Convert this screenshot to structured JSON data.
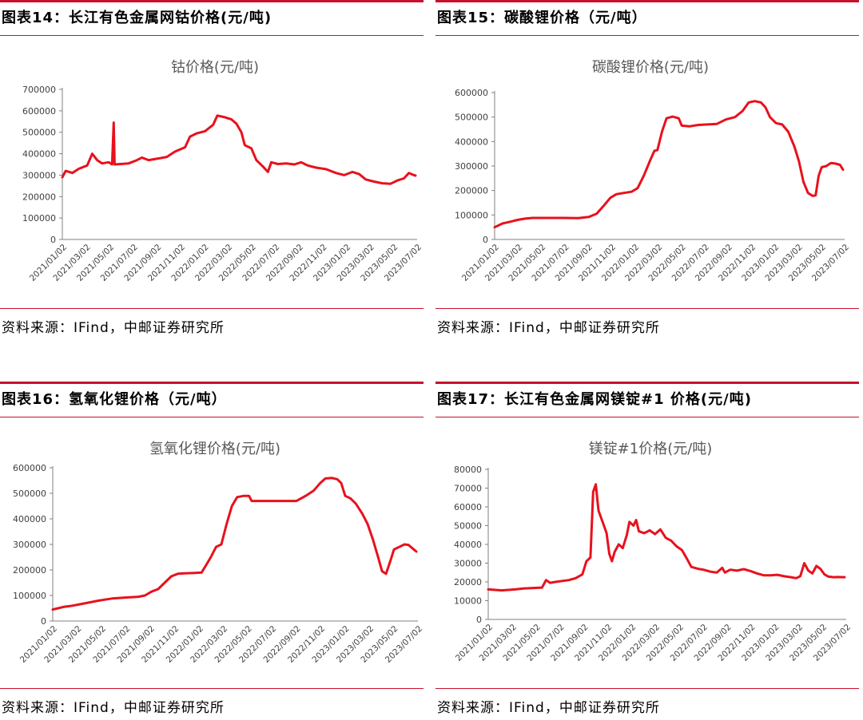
{
  "source_label": "资料来源：IFind，中邮证券研究所",
  "panels": [
    {
      "header": "图表14：长江有色金属网钴价格(元/吨)"
    },
    {
      "header": "图表15：碳酸锂价格（元/吨）"
    },
    {
      "header": "图表16：氢氧化锂价格（元/吨）"
    },
    {
      "header": "图表17：长江有色金属网镁锭#1 价格(元/吨)"
    }
  ],
  "chart_data": [
    {
      "type": "line",
      "title": "钴价格(元/吨)",
      "color": "#e8111c",
      "ylim": [
        0,
        700000
      ],
      "yticks": [
        "0",
        "100000",
        "200000",
        "300000",
        "400000",
        "500000",
        "600000",
        "700000"
      ],
      "xticks": [
        "2021/01/02",
        "2021/03/02",
        "2021/05/02",
        "2021/07/02",
        "2021/09/02",
        "2021/11/02",
        "2022/01/02",
        "2022/03/02",
        "2022/05/02",
        "2022/07/02",
        "2022/09/02",
        "2022/11/02",
        "2023/01/02",
        "2023/03/02",
        "2023/05/02",
        "2023/07/02"
      ],
      "points": [
        [
          0,
          290000
        ],
        [
          0.2,
          320000
        ],
        [
          0.6,
          310000
        ],
        [
          1.0,
          330000
        ],
        [
          1.5,
          345000
        ],
        [
          1.8,
          400000
        ],
        [
          2.1,
          370000
        ],
        [
          2.4,
          355000
        ],
        [
          2.8,
          360000
        ],
        [
          3.0,
          350000
        ],
        [
          3.1,
          545000
        ],
        [
          3.15,
          350000
        ],
        [
          3.5,
          352000
        ],
        [
          4.0,
          355000
        ],
        [
          4.5,
          370000
        ],
        [
          4.8,
          382000
        ],
        [
          5.2,
          370000
        ],
        [
          5.8,
          378000
        ],
        [
          6.3,
          385000
        ],
        [
          6.8,
          410000
        ],
        [
          7.4,
          430000
        ],
        [
          7.7,
          480000
        ],
        [
          8.1,
          495000
        ],
        [
          8.6,
          505000
        ],
        [
          9.1,
          535000
        ],
        [
          9.35,
          578000
        ],
        [
          9.8,
          570000
        ],
        [
          10.2,
          560000
        ],
        [
          10.5,
          540000
        ],
        [
          10.8,
          500000
        ],
        [
          11.0,
          440000
        ],
        [
          11.4,
          425000
        ],
        [
          11.7,
          370000
        ],
        [
          12.1,
          340000
        ],
        [
          12.4,
          315000
        ],
        [
          12.6,
          360000
        ],
        [
          13.0,
          352000
        ],
        [
          13.5,
          355000
        ],
        [
          14.0,
          350000
        ],
        [
          14.4,
          360000
        ],
        [
          14.8,
          345000
        ],
        [
          15.3,
          335000
        ],
        [
          15.9,
          328000
        ],
        [
          16.5,
          310000
        ],
        [
          17.0,
          300000
        ],
        [
          17.5,
          315000
        ],
        [
          17.9,
          305000
        ],
        [
          18.3,
          280000
        ],
        [
          18.8,
          270000
        ],
        [
          19.3,
          262000
        ],
        [
          19.8,
          260000
        ],
        [
          20.2,
          275000
        ],
        [
          20.6,
          285000
        ],
        [
          20.9,
          310000
        ],
        [
          21.2,
          300000
        ],
        [
          21.3,
          298000
        ]
      ]
    },
    {
      "type": "line",
      "title": "碳酸锂价格(元/吨)",
      "color": "#e8111c",
      "ylim": [
        0,
        600000
      ],
      "yticks": [
        "0",
        "100000",
        "200000",
        "300000",
        "400000",
        "500000",
        "600000"
      ],
      "xticks": [
        "2021/01/02",
        "2021/03/02",
        "2021/05/02",
        "2021/07/02",
        "2021/09/02",
        "2021/11/02",
        "2022/01/02",
        "2022/03/02",
        "2022/05/02",
        "2022/07/02",
        "2022/09/02",
        "2022/11/02",
        "2023/01/02",
        "2023/03/02",
        "2023/05/02",
        "2023/07/02"
      ],
      "points": [
        [
          0,
          50000
        ],
        [
          0.5,
          65000
        ],
        [
          1.0,
          72000
        ],
        [
          1.5,
          80000
        ],
        [
          2.0,
          85000
        ],
        [
          2.5,
          88000
        ],
        [
          3.5,
          88000
        ],
        [
          4.5,
          88000
        ],
        [
          5.5,
          87000
        ],
        [
          6.2,
          92000
        ],
        [
          6.7,
          105000
        ],
        [
          7.2,
          140000
        ],
        [
          7.6,
          170000
        ],
        [
          8.0,
          185000
        ],
        [
          8.5,
          190000
        ],
        [
          9.0,
          195000
        ],
        [
          9.4,
          210000
        ],
        [
          9.8,
          260000
        ],
        [
          10.2,
          320000
        ],
        [
          10.5,
          362000
        ],
        [
          10.7,
          365000
        ],
        [
          11.0,
          440000
        ],
        [
          11.3,
          495000
        ],
        [
          11.7,
          502000
        ],
        [
          12.1,
          495000
        ],
        [
          12.3,
          465000
        ],
        [
          12.8,
          462000
        ],
        [
          13.4,
          468000
        ],
        [
          14.0,
          470000
        ],
        [
          14.6,
          472000
        ],
        [
          15.2,
          490000
        ],
        [
          15.8,
          500000
        ],
        [
          16.3,
          525000
        ],
        [
          16.7,
          560000
        ],
        [
          17.1,
          565000
        ],
        [
          17.5,
          560000
        ],
        [
          17.8,
          540000
        ],
        [
          18.1,
          500000
        ],
        [
          18.5,
          475000
        ],
        [
          18.9,
          470000
        ],
        [
          19.3,
          440000
        ],
        [
          19.7,
          380000
        ],
        [
          20.0,
          320000
        ],
        [
          20.3,
          235000
        ],
        [
          20.6,
          190000
        ],
        [
          20.9,
          178000
        ],
        [
          21.1,
          180000
        ],
        [
          21.3,
          260000
        ],
        [
          21.5,
          295000
        ],
        [
          21.8,
          300000
        ],
        [
          22.1,
          312000
        ],
        [
          22.4,
          310000
        ],
        [
          22.7,
          305000
        ],
        [
          22.9,
          285000
        ]
      ]
    },
    {
      "type": "line",
      "title": "氢氧化锂价格(元/吨)",
      "color": "#e8111c",
      "ylim": [
        0,
        600000
      ],
      "yticks": [
        "0",
        "100000",
        "200000",
        "300000",
        "400000",
        "500000",
        "600000"
      ],
      "xticks": [
        "2021/01/02",
        "2021/03/02",
        "2021/05/02",
        "2021/07/02",
        "2021/09/02",
        "2021/11/02",
        "2022/01/02",
        "2022/03/02",
        "2022/05/02",
        "2022/07/02",
        "2022/09/02",
        "2022/11/02",
        "2023/01/02",
        "2023/03/02",
        "2023/05/02",
        "2023/07/02"
      ],
      "points": [
        [
          0,
          45000
        ],
        [
          0.4,
          50000
        ],
        [
          0.8,
          55000
        ],
        [
          1.5,
          60000
        ],
        [
          2.5,
          70000
        ],
        [
          3.5,
          80000
        ],
        [
          4.5,
          88000
        ],
        [
          5.5,
          92000
        ],
        [
          6.5,
          95000
        ],
        [
          7.0,
          100000
        ],
        [
          7.5,
          115000
        ],
        [
          8.0,
          125000
        ],
        [
          8.5,
          150000
        ],
        [
          9.0,
          175000
        ],
        [
          9.5,
          185000
        ],
        [
          10.0,
          187000
        ],
        [
          10.8,
          188000
        ],
        [
          11.3,
          190000
        ],
        [
          11.6,
          215000
        ],
        [
          12.0,
          250000
        ],
        [
          12.4,
          290000
        ],
        [
          12.8,
          300000
        ],
        [
          13.2,
          380000
        ],
        [
          13.6,
          450000
        ],
        [
          14.0,
          485000
        ],
        [
          14.5,
          490000
        ],
        [
          14.9,
          490000
        ],
        [
          15.1,
          470000
        ],
        [
          16.0,
          470000
        ],
        [
          17.0,
          470000
        ],
        [
          17.8,
          470000
        ],
        [
          18.5,
          470000
        ],
        [
          19.2,
          490000
        ],
        [
          19.8,
          510000
        ],
        [
          20.3,
          540000
        ],
        [
          20.7,
          558000
        ],
        [
          21.2,
          560000
        ],
        [
          21.6,
          555000
        ],
        [
          21.9,
          540000
        ],
        [
          22.2,
          490000
        ],
        [
          22.6,
          480000
        ],
        [
          23.0,
          460000
        ],
        [
          23.5,
          420000
        ],
        [
          23.9,
          380000
        ],
        [
          24.3,
          320000
        ],
        [
          24.7,
          250000
        ],
        [
          25.0,
          195000
        ],
        [
          25.3,
          185000
        ],
        [
          25.6,
          230000
        ],
        [
          25.9,
          280000
        ],
        [
          26.3,
          290000
        ],
        [
          26.7,
          300000
        ],
        [
          27.0,
          298000
        ],
        [
          27.3,
          285000
        ],
        [
          27.6,
          272000
        ]
      ]
    },
    {
      "type": "line",
      "title": "镁锭#1价格(元/吨)",
      "color": "#e8111c",
      "ylim": [
        0,
        80000
      ],
      "yticks": [
        "0",
        "10000",
        "20000",
        "30000",
        "40000",
        "50000",
        "60000",
        "70000",
        "80000"
      ],
      "xticks": [
        "2021/01/02",
        "2021/03/02",
        "2021/05/02",
        "2021/07/02",
        "2021/09/02",
        "2021/11/02",
        "2022/01/02",
        "2022/03/02",
        "2022/05/02",
        "2022/07/02",
        "2022/09/02",
        "2022/11/02",
        "2023/01/02",
        "2023/03/02",
        "2023/05/02",
        "2023/07/02"
      ],
      "points": [
        [
          0,
          16000
        ],
        [
          1.0,
          15500
        ],
        [
          2.0,
          16000
        ],
        [
          2.6,
          16500
        ],
        [
          3.5,
          16800
        ],
        [
          4.0,
          17000
        ],
        [
          4.3,
          21000
        ],
        [
          4.6,
          19500
        ],
        [
          5.0,
          20000
        ],
        [
          5.5,
          20500
        ],
        [
          6.0,
          21000
        ],
        [
          6.5,
          22000
        ],
        [
          7.0,
          24000
        ],
        [
          7.3,
          31000
        ],
        [
          7.6,
          33000
        ],
        [
          7.8,
          68000
        ],
        [
          8.0,
          72000
        ],
        [
          8.2,
          58000
        ],
        [
          8.5,
          52000
        ],
        [
          8.8,
          46000
        ],
        [
          9.0,
          35000
        ],
        [
          9.2,
          31000
        ],
        [
          9.4,
          36000
        ],
        [
          9.7,
          40000
        ],
        [
          10.0,
          38000
        ],
        [
          10.3,
          45000
        ],
        [
          10.5,
          52000
        ],
        [
          10.8,
          50000
        ],
        [
          11.0,
          53000
        ],
        [
          11.2,
          47000
        ],
        [
          11.6,
          46000
        ],
        [
          12.0,
          47500
        ],
        [
          12.4,
          45500
        ],
        [
          12.8,
          48000
        ],
        [
          13.2,
          43500
        ],
        [
          13.6,
          42000
        ],
        [
          14.0,
          39000
        ],
        [
          14.4,
          37000
        ],
        [
          14.8,
          32000
        ],
        [
          15.1,
          28000
        ],
        [
          15.6,
          27000
        ],
        [
          16.0,
          26500
        ],
        [
          16.5,
          25500
        ],
        [
          17.0,
          25000
        ],
        [
          17.4,
          27500
        ],
        [
          17.6,
          25000
        ],
        [
          18.0,
          26500
        ],
        [
          18.5,
          26000
        ],
        [
          19.0,
          26800
        ],
        [
          19.5,
          25800
        ],
        [
          20.0,
          24500
        ],
        [
          20.5,
          23500
        ],
        [
          21.0,
          23500
        ],
        [
          21.5,
          23800
        ],
        [
          22.0,
          23000
        ],
        [
          22.5,
          22500
        ],
        [
          22.9,
          22000
        ],
        [
          23.2,
          23000
        ],
        [
          23.5,
          30000
        ],
        [
          23.8,
          26000
        ],
        [
          24.1,
          24500
        ],
        [
          24.4,
          28500
        ],
        [
          24.7,
          27000
        ],
        [
          25.0,
          24000
        ],
        [
          25.3,
          22800
        ],
        [
          25.7,
          22500
        ],
        [
          26.0,
          22600
        ],
        [
          26.5,
          22500
        ]
      ]
    }
  ]
}
